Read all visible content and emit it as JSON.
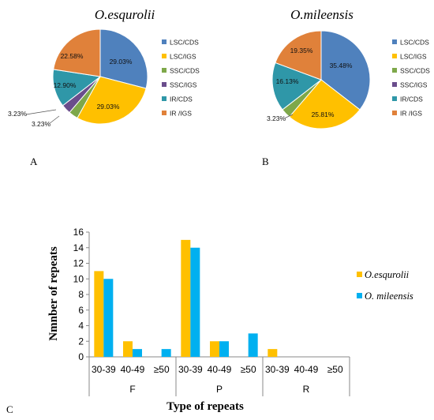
{
  "panel_letters": [
    "A",
    "B",
    "C"
  ],
  "chart_data": [
    {
      "type": "pie",
      "title": "O.esqurolii",
      "categories": [
        "LSC/CDS",
        "LSC/IGS",
        "SSC/CDS",
        "SSC/IGS",
        "IR/CDS",
        "IR /IGS"
      ],
      "values": [
        29.03,
        29.03,
        3.23,
        3.23,
        12.9,
        22.58
      ],
      "labels": [
        "29.03%",
        "29.03%",
        "3.23%",
        "3.23%",
        "12.90%",
        "22.58%"
      ],
      "colors": [
        "#4f81bd",
        "#ffc000",
        "#7ea84a",
        "#6a4d8c",
        "#2f97a8",
        "#e0813a"
      ],
      "legend": "right"
    },
    {
      "type": "pie",
      "title": "O.mileensis",
      "categories": [
        "LSC/CDS",
        "LSC/IGS",
        "SSC/CDS",
        "SSC/IGS",
        "IR/CDS",
        "IR /IGS"
      ],
      "values": [
        35.48,
        25.81,
        3.23,
        0,
        16.13,
        19.35
      ],
      "labels": [
        "35.48%",
        "25.81%",
        "3.23%",
        "",
        "16.13%",
        "19.35%"
      ],
      "colors": [
        "#4f81bd",
        "#ffc000",
        "#7ea84a",
        "#6a4d8c",
        "#2f97a8",
        "#e0813a"
      ],
      "legend": "right"
    },
    {
      "type": "bar",
      "groups": [
        "F",
        "P",
        "R"
      ],
      "categories": [
        "30-39",
        "40-49",
        "≥50",
        "30-39",
        "40-49",
        "≥50",
        "30-39",
        "40-49",
        "≥50"
      ],
      "series": [
        {
          "name": "O.esqurolii",
          "color": "#ffc000",
          "values": [
            11,
            2,
            0,
            15,
            2,
            0,
            1,
            0,
            0
          ]
        },
        {
          "name": "O. mileensis",
          "color": "#00b0f0",
          "values": [
            10,
            1,
            1,
            14,
            2,
            3,
            0,
            0,
            0
          ]
        }
      ],
      "xlabel": "Type of  repeats",
      "ylabel": "Nmnber of repeats",
      "ylim": [
        0,
        16
      ],
      "yticks": [
        "0",
        "2",
        "4",
        "6",
        "8",
        "10",
        "12",
        "14",
        "16"
      ],
      "grid": false,
      "legend": "right"
    }
  ]
}
